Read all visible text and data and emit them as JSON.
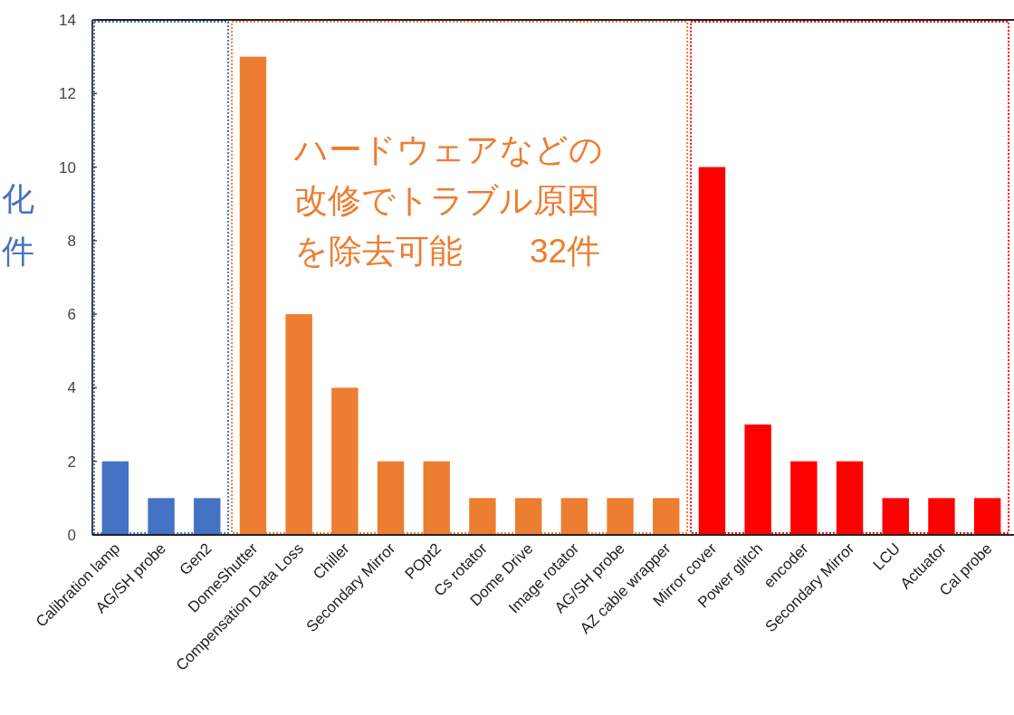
{
  "chart_data": {
    "type": "bar",
    "categories": [
      "Calibration lamp",
      "AG/SH probe",
      "Gen2",
      "DomeShutter",
      "Compensation Data Loss",
      "Chiller",
      "Secondary Mirror",
      "POpt2",
      "Cs rotator",
      "Dome Drive",
      "Image rotator",
      "AG/SH probe",
      "AZ cable wrapper",
      "Mirror cover",
      "Power glitch",
      "encoder",
      "Secondary Mirror",
      "LCU",
      "Actuator",
      "Cal probe"
    ],
    "values": [
      2,
      1,
      1,
      13,
      6,
      4,
      2,
      2,
      1,
      1,
      1,
      1,
      1,
      10,
      3,
      2,
      2,
      1,
      1,
      1
    ],
    "colors": [
      "#4472c4",
      "#4472c4",
      "#4472c4",
      "#ed7d31",
      "#ed7d31",
      "#ed7d31",
      "#ed7d31",
      "#ed7d31",
      "#ed7d31",
      "#ed7d31",
      "#ed7d31",
      "#ed7d31",
      "#ed7d31",
      "#ff0000",
      "#ff0000",
      "#ff0000",
      "#ff0000",
      "#ff0000",
      "#ff0000",
      "#ff0000"
    ],
    "ylim": [
      0,
      14
    ],
    "yticks": [
      0,
      2,
      4,
      6,
      8,
      10,
      12,
      14
    ],
    "grid": false,
    "annotations": [
      "ハードウェアなどの改修でトラブル原因を除去可能　　32件",
      "化",
      "件"
    ]
  }
}
